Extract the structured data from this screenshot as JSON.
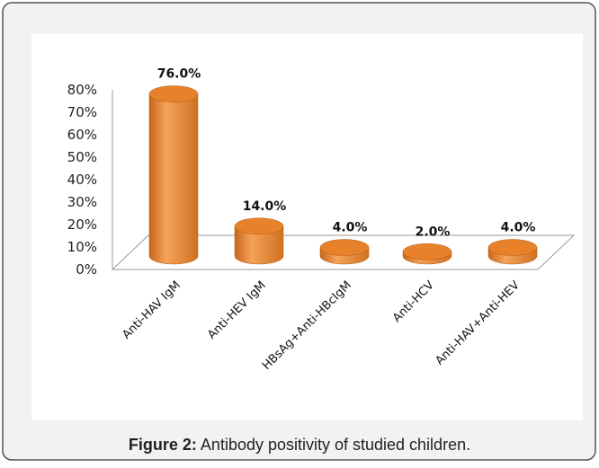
{
  "chart_data": {
    "type": "bar3d",
    "caption_label": "Figure 2:",
    "caption_text": "Antibody positivity of studied children.",
    "categories": [
      "Anti-HAV IgM",
      "Anti-HEV IgM",
      "HBsAg+Anti-HBcIgM",
      "Anti-HCV",
      "Anti-HAV+Anti-HEV"
    ],
    "values": [
      76,
      14,
      4,
      2,
      4
    ],
    "value_labels": [
      "76.0%",
      "14.0%",
      "4.0%",
      "2.0%",
      "4.0%"
    ],
    "color": "#e8822a",
    "ylim": [
      0,
      80
    ],
    "yticks": [
      {
        "value": 0,
        "label": "0%"
      },
      {
        "value": 10,
        "label": "10%"
      },
      {
        "value": 20,
        "label": "20%"
      },
      {
        "value": 30,
        "label": "30%"
      },
      {
        "value": 40,
        "label": "40%"
      },
      {
        "value": 50,
        "label": "50%"
      },
      {
        "value": 60,
        "label": "60%"
      },
      {
        "value": 70,
        "label": "70%"
      },
      {
        "value": 80,
        "label": "80%"
      }
    ]
  }
}
